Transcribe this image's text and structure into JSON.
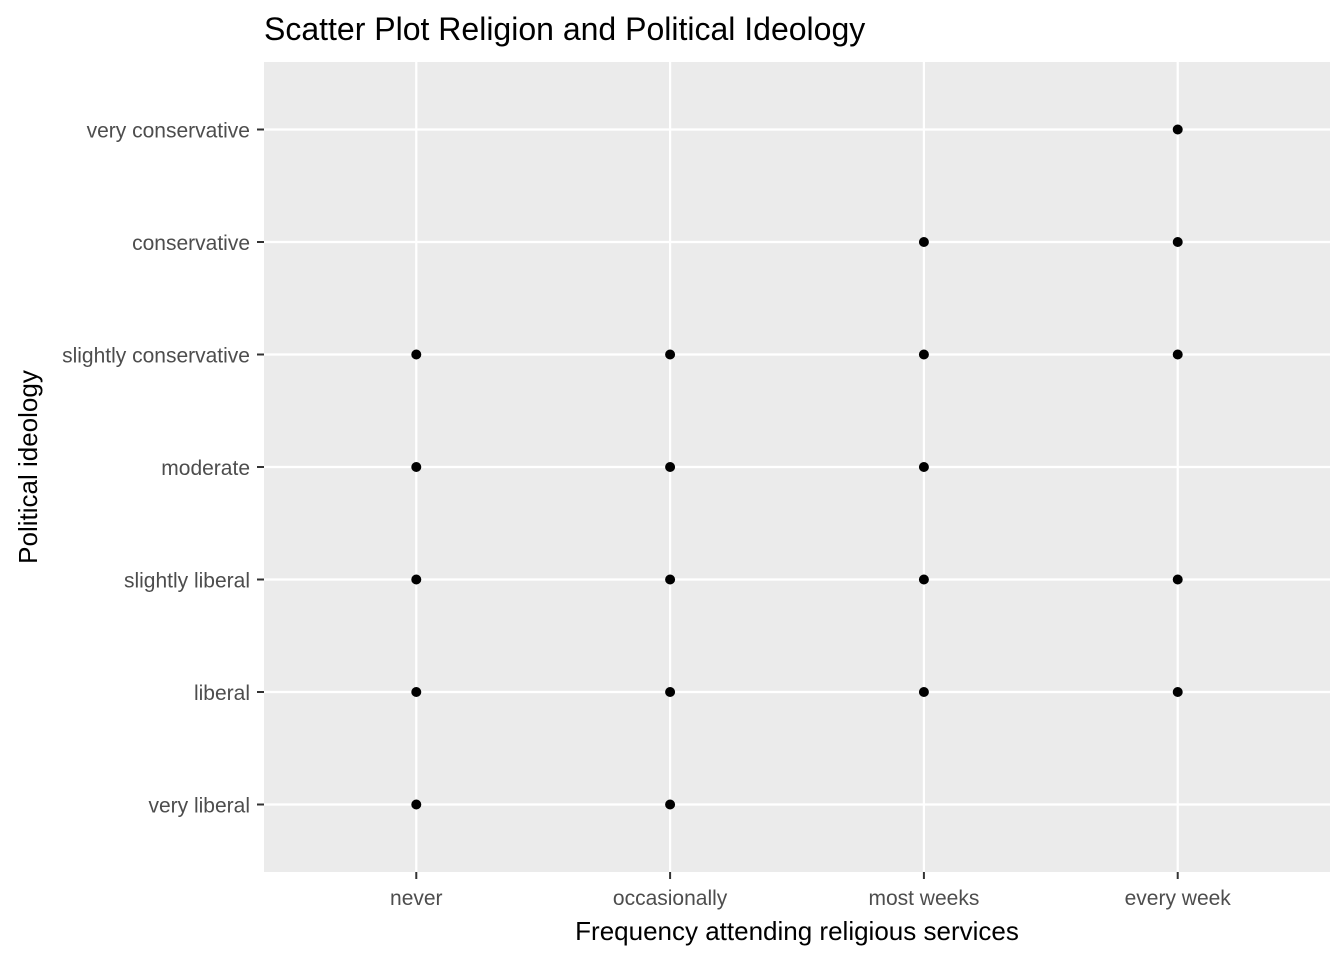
{
  "chart_data": {
    "type": "scatter",
    "title": "Scatter Plot Religion and Political Ideology",
    "xlabel": "Frequency attending religious services",
    "ylabel": "Political ideology",
    "x_categories": [
      "never",
      "occasionally",
      "most weeks",
      "every week"
    ],
    "y_categories": [
      "very liberal",
      "liberal",
      "slightly liberal",
      "moderate",
      "slightly conservative",
      "conservative",
      "very conservative"
    ],
    "points": [
      {
        "x": "never",
        "y": "very liberal"
      },
      {
        "x": "never",
        "y": "liberal"
      },
      {
        "x": "never",
        "y": "slightly liberal"
      },
      {
        "x": "never",
        "y": "moderate"
      },
      {
        "x": "never",
        "y": "slightly conservative"
      },
      {
        "x": "occasionally",
        "y": "very liberal"
      },
      {
        "x": "occasionally",
        "y": "liberal"
      },
      {
        "x": "occasionally",
        "y": "slightly liberal"
      },
      {
        "x": "occasionally",
        "y": "moderate"
      },
      {
        "x": "occasionally",
        "y": "slightly conservative"
      },
      {
        "x": "most weeks",
        "y": "liberal"
      },
      {
        "x": "most weeks",
        "y": "slightly liberal"
      },
      {
        "x": "most weeks",
        "y": "moderate"
      },
      {
        "x": "most weeks",
        "y": "slightly conservative"
      },
      {
        "x": "most weeks",
        "y": "conservative"
      },
      {
        "x": "every week",
        "y": "liberal"
      },
      {
        "x": "every week",
        "y": "slightly liberal"
      },
      {
        "x": "every week",
        "y": "slightly conservative"
      },
      {
        "x": "every week",
        "y": "conservative"
      },
      {
        "x": "every week",
        "y": "very conservative"
      }
    ],
    "grid": true,
    "legend": "none",
    "colors": {
      "panel_background": "#ebebeb",
      "grid": "#ffffff",
      "point": "#000000",
      "tick_text": "#4d4d4d",
      "tick_mark": "#333333"
    }
  }
}
